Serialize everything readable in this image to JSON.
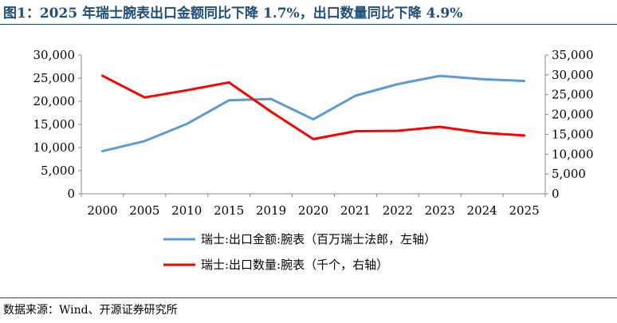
{
  "header": {
    "title": "图1：2025 年瑞士腕表出口金额同比下降 1.7%，出口数量同比下降 4.9%"
  },
  "footer": {
    "source": "数据来源：Wind、开源证券研究所"
  },
  "chart_data": {
    "type": "line",
    "title": "图1：2025 年瑞士腕表出口金额同比下降 1.7%，出口数量同比下降 4.9%",
    "categories": [
      "2000",
      "2005",
      "2010",
      "2015",
      "2019",
      "2020",
      "2021",
      "2022",
      "2023",
      "2024",
      "2025"
    ],
    "y_left": {
      "min": 0,
      "max": 30000,
      "step": 5000,
      "ticks": [
        "0",
        "5,000",
        "10,000",
        "15,000",
        "20,000",
        "25,000",
        "30,000"
      ]
    },
    "y_right": {
      "min": 0,
      "max": 35000,
      "step": 5000,
      "ticks": [
        "0",
        "5,000",
        "10,000",
        "15,000",
        "20,000",
        "25,000",
        "30,000",
        "35,000"
      ]
    },
    "grid": false,
    "legend_position": "bottom",
    "series": [
      {
        "name": "瑞士:出口金额:腕表（百万瑞士法郎，左轴）",
        "axis": "left",
        "color": "#5b9bd5",
        "values": [
          9200,
          11400,
          15100,
          20200,
          20500,
          16100,
          21200,
          23700,
          25500,
          24800,
          24400
        ]
      },
      {
        "name": "瑞士:出口数量:腕表（千个，右轴）",
        "axis": "right",
        "color": "#ff0000",
        "values": [
          29800,
          24300,
          26100,
          28100,
          20700,
          13800,
          15800,
          15900,
          16900,
          15400,
          14700
        ]
      }
    ]
  }
}
